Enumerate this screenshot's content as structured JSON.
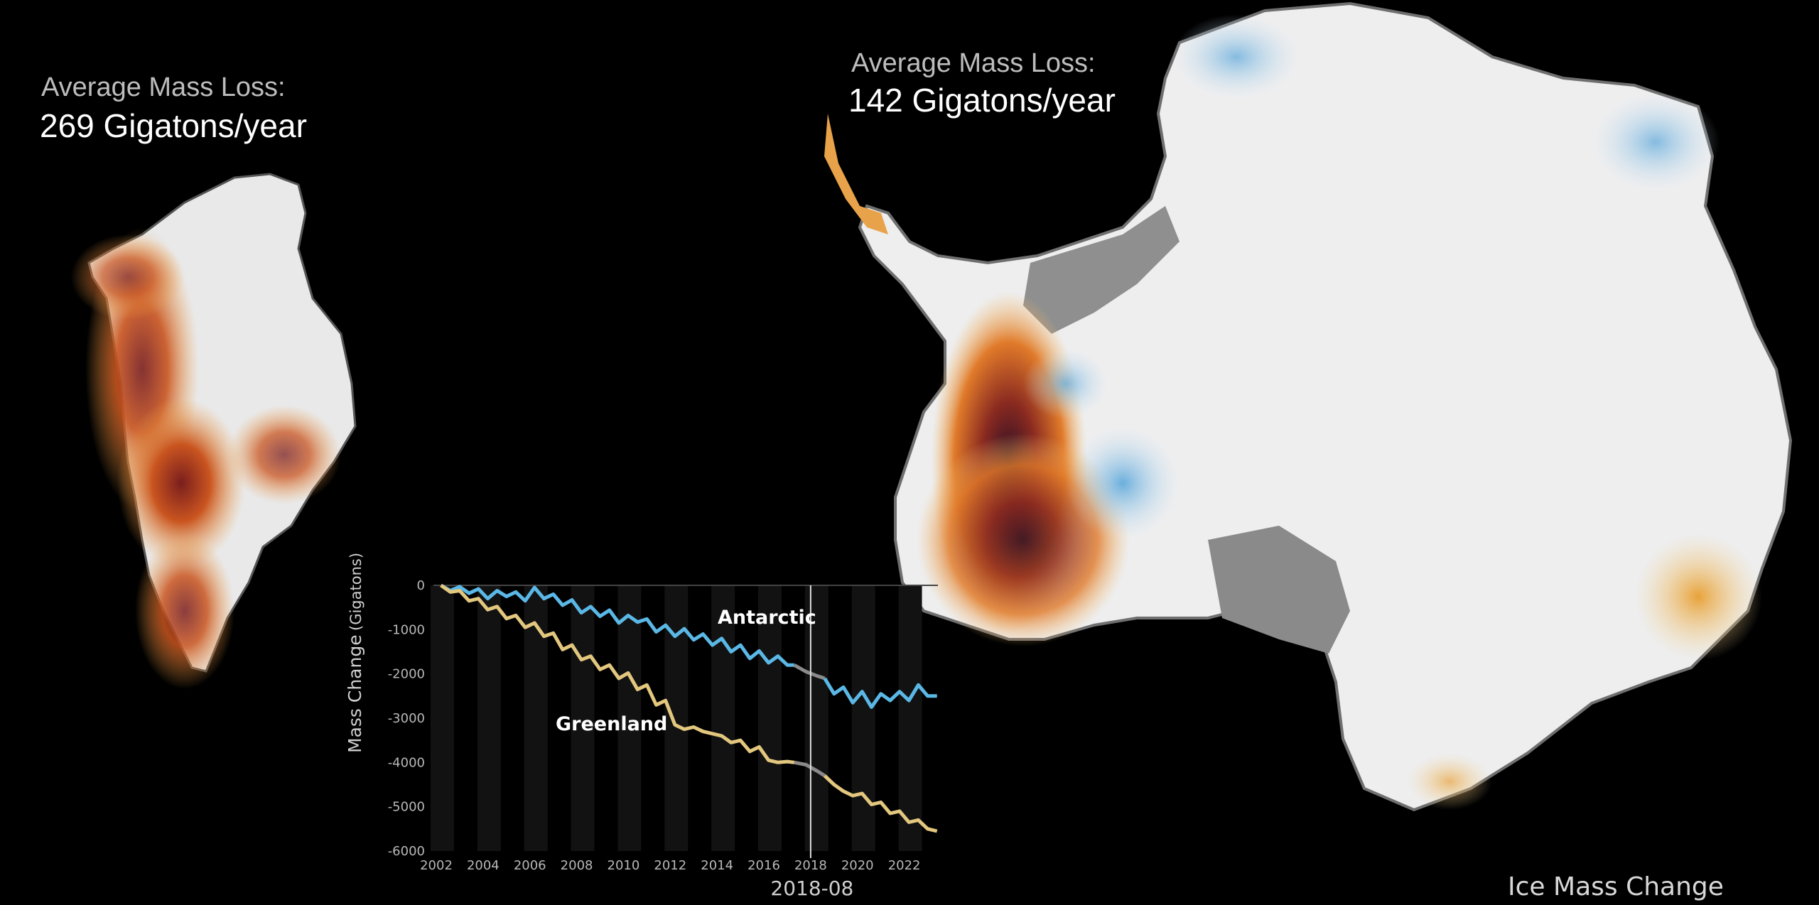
{
  "greenland": {
    "label": "Average Mass Loss:",
    "value": "269 Gigatons/year"
  },
  "antarctica": {
    "label": "Average Mass Loss:",
    "value": "142 Gigatons/year"
  },
  "caption": "Ice Mass Change",
  "colors": {
    "antarctic": "#5bb8e6",
    "greenland": "#e3c77e",
    "projection": "#8a8a8a",
    "background": "#000000"
  },
  "chart_data": {
    "type": "line",
    "ylabel": "Mass Change",
    "ylabel_unit": "(Gigatons)",
    "xlim": [
      2002,
      2023.5
    ],
    "ylim": [
      -6000,
      0
    ],
    "x_ticks": [
      "2002",
      "2004",
      "2006",
      "2008",
      "2010",
      "2012",
      "2014",
      "2016",
      "2018",
      "2020",
      "2022"
    ],
    "y_ticks": [
      "0",
      "-1000",
      "-2000",
      "-3000",
      "-4000",
      "-5000",
      "-6000"
    ],
    "current_date": "2018-08",
    "current_x": 2018.0,
    "gap": [
      2017.3,
      2018.6
    ],
    "grid": false,
    "series": [
      {
        "name": "Antarctic",
        "x": [
          2002.2,
          2002.6,
          2003.0,
          2003.4,
          2003.8,
          2004.2,
          2004.6,
          2005.0,
          2005.4,
          2005.8,
          2006.2,
          2006.6,
          2007.0,
          2007.4,
          2007.8,
          2008.2,
          2008.6,
          2009.0,
          2009.4,
          2009.8,
          2010.2,
          2010.6,
          2011.0,
          2011.4,
          2011.8,
          2012.2,
          2012.6,
          2013.0,
          2013.4,
          2013.8,
          2014.2,
          2014.6,
          2015.0,
          2015.4,
          2015.8,
          2016.2,
          2016.6,
          2017.0,
          2017.3,
          2017.8,
          2018.3,
          2018.6,
          2019.0,
          2019.4,
          2019.8,
          2020.2,
          2020.6,
          2021.0,
          2021.4,
          2021.8,
          2022.2,
          2022.6,
          2023.0,
          2023.4
        ],
        "y": [
          0,
          -120,
          -30,
          -180,
          -80,
          -300,
          -120,
          -250,
          -150,
          -350,
          -50,
          -300,
          -200,
          -450,
          -330,
          -620,
          -480,
          -700,
          -560,
          -850,
          -680,
          -830,
          -760,
          -1050,
          -900,
          -1150,
          -980,
          -1230,
          -1100,
          -1350,
          -1200,
          -1500,
          -1350,
          -1650,
          -1480,
          -1750,
          -1600,
          -1800,
          -1800,
          -1950,
          -2050,
          -2100,
          -2450,
          -2300,
          -2650,
          -2400,
          -2750,
          -2450,
          -2600,
          -2400,
          -2600,
          -2250,
          -2500,
          -2500
        ]
      },
      {
        "name": "Greenland",
        "x": [
          2002.2,
          2002.6,
          2003.0,
          2003.4,
          2003.8,
          2004.2,
          2004.6,
          2005.0,
          2005.4,
          2005.8,
          2006.2,
          2006.6,
          2007.0,
          2007.4,
          2007.8,
          2008.2,
          2008.6,
          2009.0,
          2009.4,
          2009.8,
          2010.2,
          2010.6,
          2011.0,
          2011.4,
          2011.8,
          2012.2,
          2012.6,
          2013.0,
          2013.4,
          2013.8,
          2014.2,
          2014.6,
          2015.0,
          2015.4,
          2015.8,
          2016.2,
          2016.6,
          2017.0,
          2017.3,
          2017.8,
          2018.3,
          2018.6,
          2019.0,
          2019.4,
          2019.8,
          2020.2,
          2020.6,
          2021.0,
          2021.4,
          2021.8,
          2022.2,
          2022.6,
          2023.0,
          2023.4
        ],
        "y": [
          0,
          -150,
          -120,
          -350,
          -300,
          -550,
          -480,
          -750,
          -680,
          -950,
          -850,
          -1150,
          -1080,
          -1450,
          -1350,
          -1680,
          -1600,
          -1900,
          -1800,
          -2100,
          -1980,
          -2350,
          -2250,
          -2700,
          -2600,
          -3150,
          -3250,
          -3200,
          -3300,
          -3350,
          -3400,
          -3550,
          -3500,
          -3750,
          -3650,
          -3950,
          -4000,
          -3980,
          -4000,
          -4050,
          -4200,
          -4300,
          -4500,
          -4650,
          -4750,
          -4700,
          -4950,
          -4900,
          -5150,
          -5100,
          -5350,
          -5300,
          -5500,
          -5550
        ]
      }
    ]
  }
}
